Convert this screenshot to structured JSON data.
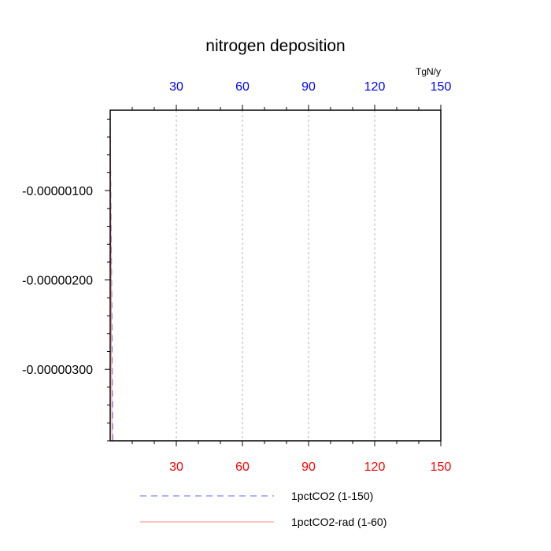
{
  "chart_data": {
    "type": "line",
    "title": "nitrogen deposition",
    "units": "TgN/y",
    "xlim": [
      0,
      150
    ],
    "ylim": [
      -3.8e-06,
      -1e-07
    ],
    "grid": "vertical dashed",
    "top_axis": {
      "ticks": [
        30,
        60,
        90,
        120,
        150
      ],
      "tick_labels": [
        "30",
        "60",
        "90",
        "120",
        "150"
      ],
      "color": "#0000ff"
    },
    "bottom_axis": {
      "ticks": [
        30,
        60,
        90,
        120,
        150
      ],
      "tick_labels": [
        "30",
        "60",
        "90",
        "120",
        "150"
      ],
      "color": "#ff0000"
    },
    "y_axis": {
      "ticks": [
        -1e-06,
        -2e-06,
        -3e-06
      ],
      "tick_labels": [
        "-0.00000100",
        "-0.00000200",
        "-0.00000300"
      ],
      "minor_step": 2e-07
    },
    "series": [
      {
        "name": "1pctCO2 (1-150)",
        "color": "#6666ff",
        "dash": "dashed",
        "x": [
          0,
          0.6,
          1.2
        ],
        "y": [
          -1.5e-07,
          -1.8e-06,
          -3.8e-06
        ]
      },
      {
        "name": "1pctCO2-rad (1-60)",
        "color": "#ff8888",
        "dash": "solid",
        "x": [
          0,
          0.4,
          0.8
        ],
        "y": [
          -1e-07,
          -1.7e-06,
          -3.8e-06
        ]
      }
    ],
    "legend": {
      "placement": "bottom",
      "entries": [
        "1pctCO2 (1-150)",
        "1pctCO2-rad (1-60)"
      ]
    }
  }
}
